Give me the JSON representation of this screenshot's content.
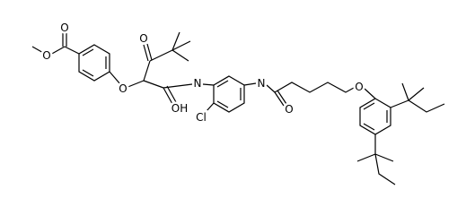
{
  "atoms": [
    "O",
    "O",
    "O",
    "O",
    "OH",
    "N",
    "Cl",
    "N",
    "O",
    "O"
  ]
}
